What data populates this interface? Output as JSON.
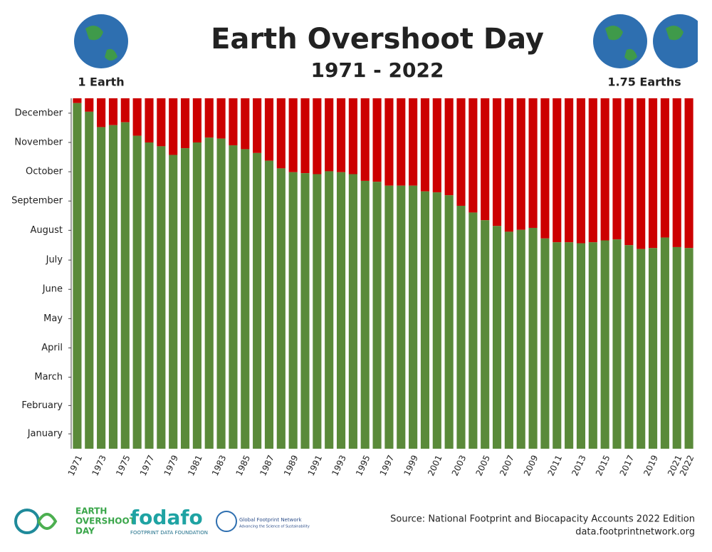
{
  "chart_data": {
    "type": "bar",
    "title": "Earth Overshoot Day",
    "subtitle": "1971 - 2022",
    "annotations": [
      "1 Earth",
      "1.75 Earths"
    ],
    "categories": [
      "1971",
      null,
      "1973",
      null,
      "1975",
      null,
      "1977",
      null,
      "1979",
      null,
      "1981",
      null,
      "1983",
      null,
      "1985",
      null,
      "1987",
      null,
      "1989",
      null,
      "1991",
      null,
      "1993",
      null,
      "1995",
      null,
      "1997",
      null,
      "1999",
      null,
      "2001",
      null,
      "2003",
      null,
      "2005",
      null,
      "2007",
      null,
      "2009",
      null,
      "2011",
      null,
      "2013",
      null,
      "2015",
      null,
      "2017",
      null,
      "2019",
      null,
      "2021",
      "2022"
    ],
    "values": [
      360,
      351,
      335,
      337,
      340,
      326,
      319,
      315,
      306,
      313,
      319,
      324,
      323,
      316,
      312,
      308,
      300,
      292,
      288,
      287,
      286,
      289,
      288,
      286,
      279,
      278,
      274,
      274,
      274,
      268,
      267,
      264,
      253,
      246,
      238,
      232,
      226,
      228,
      230,
      219,
      215,
      215,
      214,
      215,
      217,
      218,
      212,
      208,
      209,
      220,
      210,
      209
    ],
    "color": "#5a8a3a",
    "overshoot_color": "#cc0000",
    "ylim": [
      0,
      365
    ],
    "yticks": [
      {
        "value": 15.5,
        "label": "January"
      },
      {
        "value": 45,
        "label": "February"
      },
      {
        "value": 74.5,
        "label": "March"
      },
      {
        "value": 105,
        "label": "April"
      },
      {
        "value": 135.5,
        "label": "May"
      },
      {
        "value": 166,
        "label": "June"
      },
      {
        "value": 196.5,
        "label": "July"
      },
      {
        "value": 227.5,
        "label": "August"
      },
      {
        "value": 258,
        "label": "September"
      },
      {
        "value": 288.5,
        "label": "October"
      },
      {
        "value": 319,
        "label": "November"
      },
      {
        "value": 349.5,
        "label": "December"
      }
    ],
    "grid": false
  },
  "footer": {
    "source": "Source: National Footprint and Biocapacity Accounts 2022 Edition",
    "url": "data.footprintnetwork.org",
    "logos": [
      "EARTH",
      "OVERSHOOT",
      "DAY",
      "fodafo",
      "FOOTPRINT DATA FOUNDATION",
      "Global Footprint Network",
      "Advancing the Science of Sustainability"
    ]
  }
}
